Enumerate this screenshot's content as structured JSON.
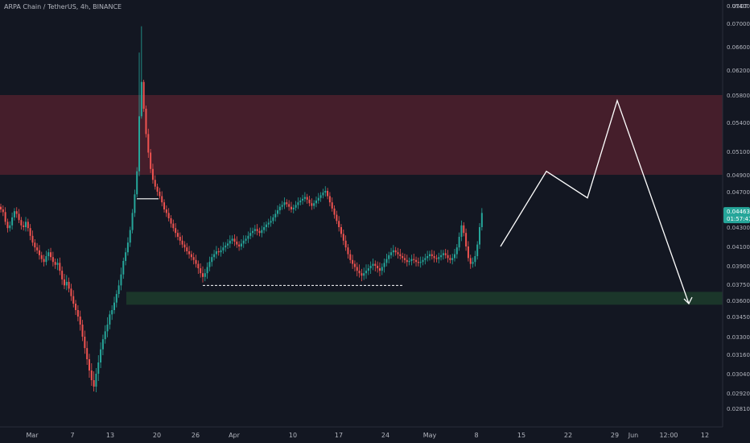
{
  "header": {
    "symbol": "ARPA Chain / TetherUS",
    "interval": "4h",
    "exchange": "BINANCE"
  },
  "colors": {
    "background": "#131722",
    "up": "#26a69a",
    "down": "#ef5350",
    "resistance_zone": "#4a1f2c",
    "support_zone": "#1c3a2b",
    "price_tag": "#26a69a"
  },
  "chart_data": {
    "type": "candlestick",
    "currency": "USDT",
    "y_ticks": [
      "0.07400",
      "0.07000",
      "0.06600",
      "0.06200",
      "0.05800",
      "0.05400",
      "0.05100",
      "0.04900",
      "0.04700",
      "0.04500",
      "0.04300",
      "0.04100",
      "0.03900",
      "0.03750",
      "0.03600",
      "0.03450",
      "0.03300",
      "0.03160",
      "0.03040",
      "0.02920",
      "0.02810"
    ],
    "x_ticks": [
      "Mar",
      "7",
      "13",
      "20",
      "26",
      "Apr",
      "10",
      "17",
      "24",
      "May",
      "8",
      "15",
      "22",
      "29",
      "Jun",
      "12:00",
      "12"
    ],
    "last_price": "0.04463",
    "countdown": "01:57:41",
    "zones": [
      {
        "type": "resistance",
        "from": 0.049,
        "to": 0.058
      },
      {
        "type": "support",
        "from": 0.0356,
        "to": 0.0368
      }
    ],
    "closes": [
      0.045,
      0.0447,
      0.0436,
      0.0429,
      0.0432,
      0.0441,
      0.0448,
      0.0445,
      0.0438,
      0.0432,
      0.043,
      0.0436,
      0.0429,
      0.0421,
      0.0414,
      0.0409,
      0.0406,
      0.0401,
      0.0397,
      0.0394,
      0.04,
      0.0404,
      0.0399,
      0.0394,
      0.0391,
      0.0393,
      0.0386,
      0.0379,
      0.0374,
      0.0377,
      0.0371,
      0.0364,
      0.0357,
      0.0351,
      0.0345,
      0.0339,
      0.033,
      0.0321,
      0.0313,
      0.0306,
      0.03,
      0.0296,
      0.0304,
      0.0311,
      0.032,
      0.0328,
      0.0334,
      0.0339,
      0.0347,
      0.0351,
      0.0358,
      0.0366,
      0.0374,
      0.0383,
      0.0395,
      0.0404,
      0.0414,
      0.0427,
      0.0446,
      0.0467,
      0.0493,
      0.0549,
      0.0601,
      0.056,
      0.0528,
      0.0509,
      0.0495,
      0.0484,
      0.0476,
      0.047,
      0.0465,
      0.0458,
      0.045,
      0.0446,
      0.044,
      0.0434,
      0.0429,
      0.0424,
      0.042,
      0.0416,
      0.0412,
      0.0409,
      0.0405,
      0.0402,
      0.0399,
      0.0396,
      0.0392,
      0.0388,
      0.0384,
      0.0381,
      0.0384,
      0.0389,
      0.0394,
      0.0399,
      0.0402,
      0.0405,
      0.0404,
      0.0406,
      0.0409,
      0.0411,
      0.0413,
      0.0416,
      0.0418,
      0.0415,
      0.0412,
      0.041,
      0.0413,
      0.0416,
      0.0418,
      0.0421,
      0.0424,
      0.0426,
      0.0428,
      0.0426,
      0.0424,
      0.0427,
      0.043,
      0.0433,
      0.0435,
      0.0437,
      0.0441,
      0.0445,
      0.0449,
      0.0453,
      0.0455,
      0.0458,
      0.0456,
      0.0453,
      0.045,
      0.0452,
      0.0455,
      0.0458,
      0.046,
      0.0462,
      0.0464,
      0.0461,
      0.0457,
      0.0454,
      0.0457,
      0.046,
      0.0463,
      0.0466,
      0.0469,
      0.0471,
      0.0465,
      0.0458,
      0.0451,
      0.0444,
      0.0437,
      0.043,
      0.0423,
      0.0416,
      0.0409,
      0.0402,
      0.0396,
      0.0392,
      0.0389,
      0.0386,
      0.0384,
      0.0382,
      0.0384,
      0.0386,
      0.0388,
      0.039,
      0.0392,
      0.039,
      0.0388,
      0.0386,
      0.0389,
      0.0393,
      0.0397,
      0.0401,
      0.0404,
      0.0406,
      0.0404,
      0.0402,
      0.04,
      0.0398,
      0.0396,
      0.0394,
      0.0395,
      0.0397,
      0.0396,
      0.0394,
      0.0393,
      0.0394,
      0.0396,
      0.0398,
      0.04,
      0.0402,
      0.04,
      0.0398,
      0.0397,
      0.0399,
      0.0401,
      0.0403,
      0.0401,
      0.0398,
      0.0396,
      0.0398,
      0.0402,
      0.0409,
      0.042,
      0.0432,
      0.0424,
      0.041,
      0.0398,
      0.0392,
      0.0394,
      0.04,
      0.0412,
      0.043,
      0.0446
    ],
    "projection": [
      [
        0.041,
        0.049
      ],
      [
        0.0451,
        0.047
      ],
      [
        0.0545,
        0.058
      ],
      [
        0.0356,
        0.036
      ]
    ],
    "annotations": [
      {
        "type": "horizontal-line",
        "style": "solid",
        "price": 0.0462
      },
      {
        "type": "horizontal-line",
        "style": "dashed",
        "price": 0.0374
      }
    ]
  }
}
